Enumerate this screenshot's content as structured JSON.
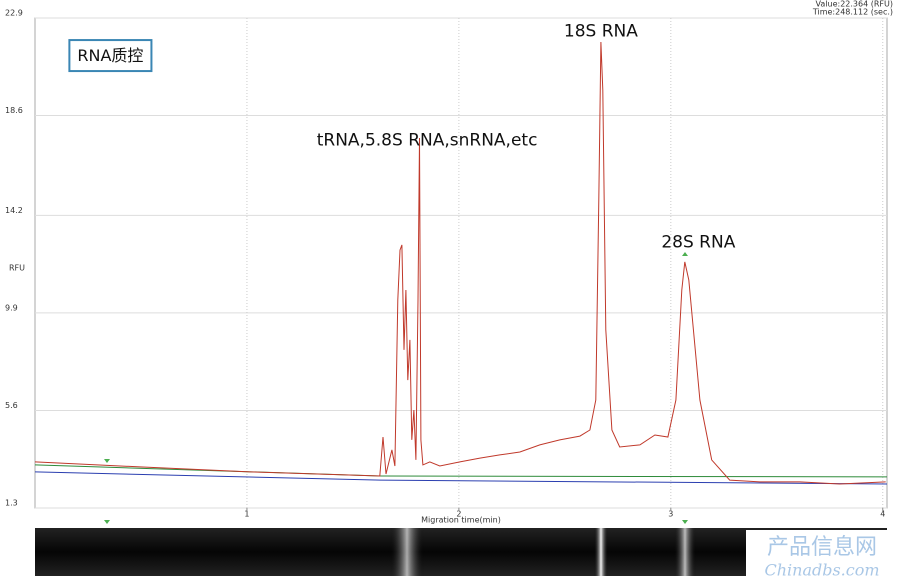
{
  "chart_data": {
    "type": "line",
    "readout_value": "Value:22.364 (RFU)",
    "readout_time": "Time:248.112 (sec.)",
    "xlabel": "Migration time(min)",
    "ylabel": "RFU",
    "annotations": [
      {
        "text": "RNA质控",
        "x": 0.2,
        "y": 21.2
      },
      {
        "text": "tRNA,5.8S RNA,snRNA,etc",
        "x": 1.85,
        "y": 17.5
      },
      {
        "text": "18S RNA",
        "x": 2.67,
        "y": 22.3
      },
      {
        "text": "28S RNA",
        "x": 3.13,
        "y": 13.0
      }
    ],
    "watermark": [
      "产品信息网",
      "Chinadbs.com"
    ],
    "xlim": [
      0,
      4.02
    ],
    "ylim": [
      1.3,
      22.9
    ],
    "xticks": [
      1,
      2,
      3,
      4
    ],
    "yticks": [
      1.3,
      5.6,
      9.9,
      14.2,
      18.6,
      22.9
    ],
    "grid": true,
    "series": [
      {
        "color": "#c0392b",
        "x": [
          0,
          0.495,
          1.014,
          1.627,
          1.642,
          1.656,
          1.684,
          1.698,
          1.712,
          1.722,
          1.731,
          1.741,
          1.75,
          1.759,
          1.769,
          1.778,
          1.788,
          1.797,
          1.807,
          1.814,
          1.821,
          1.83,
          1.863,
          1.91,
          2.005,
          2.099,
          2.193,
          2.288,
          2.382,
          2.476,
          2.571,
          2.618,
          2.646,
          2.66,
          2.67,
          2.679,
          2.693,
          2.722,
          2.759,
          2.854,
          2.925,
          2.986,
          3.024,
          3.052,
          3.066,
          3.085,
          3.137,
          3.193,
          3.278,
          3.42,
          3.608,
          3.797,
          4.014
        ],
        "values": [
          3.33,
          3.11,
          2.89,
          2.71,
          4.43,
          2.8,
          3.86,
          3.15,
          10.47,
          12.67,
          12.9,
          8.27,
          10.91,
          6.94,
          8.71,
          4.3,
          5.62,
          3.42,
          10.47,
          17.61,
          4.3,
          3.2,
          3.33,
          3.15,
          3.33,
          3.5,
          3.64,
          3.77,
          4.08,
          4.3,
          4.47,
          4.74,
          6.06,
          14.88,
          21.84,
          19.73,
          9.15,
          4.74,
          3.99,
          4.08,
          4.52,
          4.43,
          6.06,
          10.91,
          12.15,
          11.35,
          6.06,
          3.42,
          2.53,
          2.45,
          2.45,
          2.36,
          2.45
        ]
      },
      {
        "color": "#2e8b3a",
        "x": [
          0,
          1.63,
          4.02
        ],
        "values": [
          3.2,
          2.71,
          2.67
        ]
      },
      {
        "color": "#2b3fb0",
        "x": [
          0,
          1.63,
          4.02
        ],
        "values": [
          2.89,
          2.53,
          2.36
        ]
      }
    ]
  }
}
